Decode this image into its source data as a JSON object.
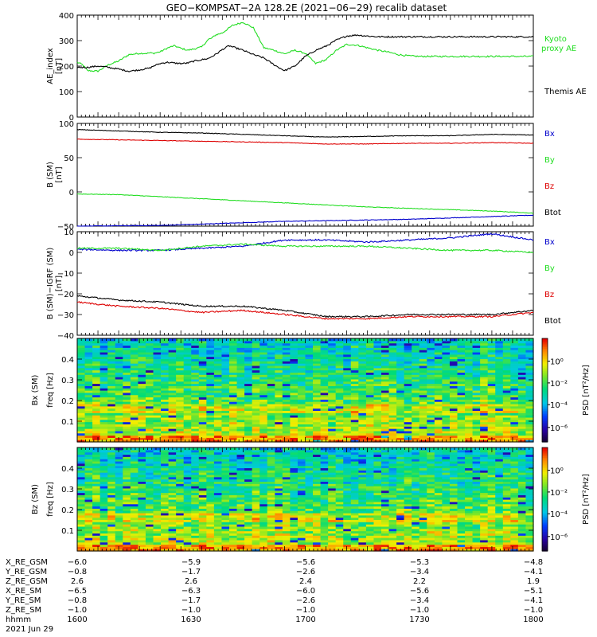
{
  "title": "GEO−KOMPSAT−2A 128.2E (2021−06−29) recalib dataset",
  "colors": {
    "black": "#000000",
    "green": "#22dd22",
    "red": "#dd0000",
    "blue": "#0000cc"
  },
  "chart_data": [
    {
      "type": "line",
      "panel": "ae",
      "ylabel": "AE_index",
      "yunit": "[nT]",
      "ylim": [
        0,
        400
      ],
      "yticks": [
        0,
        100,
        200,
        300,
        400
      ],
      "legend": [
        "Kyoto",
        "proxy AE",
        "Themis AE"
      ],
      "x": [
        0,
        8,
        15,
        30,
        45,
        60,
        75,
        90,
        100,
        105,
        110,
        120,
        130,
        140,
        150,
        160,
        170,
        180,
        190,
        195,
        200,
        210,
        220,
        225,
        240,
        255,
        270,
        285,
        300,
        315,
        330,
        345,
        360,
        375,
        390,
        405,
        420,
        435,
        450,
        465,
        480,
        495,
        510,
        525,
        540,
        555,
        570,
        585,
        600,
        615,
        630,
        645,
        660
      ],
      "series": [
        {
          "name": "Kyoto AE",
          "color": "#22dd22",
          "values": [
            215,
            205,
            182,
            180,
            205,
            220,
            245,
            250,
            250,
            252,
            250,
            256,
            270,
            280,
            270,
            262,
            268,
            275,
            305,
            310,
            322,
            330,
            350,
            360,
            372,
            350,
            272,
            262,
            248,
            262,
            250,
            210,
            225,
            262,
            285,
            282,
            272,
            262,
            255,
            245,
            240,
            238,
            238,
            238,
            238,
            238,
            238,
            238,
            238,
            238,
            238,
            238,
            238
          ]
        },
        {
          "name": "Themis AE",
          "color": "#000000",
          "values": [
            195,
            195,
            195,
            200,
            195,
            188,
            180,
            185,
            190,
            192,
            200,
            210,
            215,
            212,
            210,
            212,
            220,
            225,
            230,
            238,
            245,
            265,
            280,
            275,
            262,
            245,
            232,
            205,
            182,
            200,
            238,
            262,
            278,
            302,
            318,
            322,
            318,
            315,
            315,
            315,
            315,
            315,
            315,
            315,
            315,
            315,
            315,
            315,
            315,
            315,
            315,
            315,
            315
          ]
        }
      ]
    },
    {
      "type": "line",
      "panel": "bsm",
      "ylabel": "B (SM)",
      "yunit": "[nT]",
      "ylim": [
        -50,
        100
      ],
      "yticks": [
        -50,
        0,
        50,
        100
      ],
      "legend": [
        "Bx",
        "By",
        "Bz",
        "Btot"
      ],
      "x": [
        0,
        60,
        120,
        180,
        240,
        300,
        360,
        420,
        480,
        540,
        600,
        660
      ],
      "series": [
        {
          "name": "Bx",
          "color": "#0000cc",
          "values": [
            -50,
            -49.5,
            -49,
            -47,
            -45,
            -43,
            -42,
            -41,
            -40,
            -38,
            -36,
            -34
          ]
        },
        {
          "name": "By",
          "color": "#22dd22",
          "values": [
            -3,
            -4,
            -7,
            -10,
            -13,
            -16,
            -19,
            -22,
            -24,
            -26,
            -28,
            -31
          ]
        },
        {
          "name": "Bz",
          "color": "#dd0000",
          "values": [
            77,
            76,
            75,
            74,
            73,
            72,
            70,
            70,
            71,
            71,
            72,
            71
          ]
        },
        {
          "name": "Btot",
          "color": "#000000",
          "values": [
            91,
            89,
            87,
            86,
            84,
            82,
            80,
            81,
            82,
            82,
            84,
            83
          ]
        }
      ]
    },
    {
      "type": "line",
      "panel": "bdiff",
      "ylabel": "B (SM)−IGRF (SM)",
      "yunit": "[nT]",
      "ylim": [
        -40,
        10
      ],
      "yticks": [
        -40,
        -30,
        -20,
        -10,
        0,
        10
      ],
      "legend": [
        "Bx",
        "By",
        "Bz",
        "Btot"
      ],
      "x": [
        0,
        60,
        120,
        180,
        240,
        300,
        360,
        420,
        480,
        540,
        600,
        660
      ],
      "series": [
        {
          "name": "Bx",
          "color": "#0000cc",
          "values": [
            1.5,
            1,
            1,
            2,
            3,
            6,
            6,
            5,
            6,
            7,
            9,
            6
          ]
        },
        {
          "name": "By",
          "color": "#22dd22",
          "values": [
            2,
            2,
            1,
            3,
            4,
            3,
            3,
            3,
            2,
            1,
            1,
            0
          ]
        },
        {
          "name": "Bz",
          "color": "#dd0000",
          "values": [
            -24,
            -26,
            -27,
            -29,
            -28,
            -30,
            -32,
            -32,
            -31,
            -31,
            -31,
            -29
          ]
        },
        {
          "name": "Btot",
          "color": "#000000",
          "values": [
            -21,
            -23,
            -24,
            -26,
            -26,
            -28,
            -31,
            -31,
            -30,
            -30,
            -30,
            -28
          ]
        }
      ]
    },
    {
      "type": "heatmap",
      "panel": "spec_bx",
      "ylabel": "Bx (SM)",
      "ysub": "freq [Hz]",
      "ylim": [
        0,
        0.5
      ],
      "yticks": [
        0.1,
        0.2,
        0.3,
        0.4
      ],
      "colorbar_label": "PSD [nT²/Hz]",
      "colorbar_ticks": [
        "10⁰",
        "10⁻²",
        "10⁻⁴",
        "10⁻⁶"
      ]
    },
    {
      "type": "heatmap",
      "panel": "spec_bz",
      "ylabel": "Bz (SM)",
      "ysub": "freq [Hz]",
      "ylim": [
        0,
        0.5
      ],
      "yticks": [
        0.1,
        0.2,
        0.3,
        0.4
      ],
      "colorbar_label": "PSD [nT²/Hz]",
      "colorbar_ticks": [
        "10⁰",
        "10⁻²",
        "10⁻⁴",
        "10⁻⁶"
      ]
    }
  ],
  "footer": {
    "labels": [
      "X_RE_GSM",
      "Y_RE_GSM",
      "Z_RE_GSM",
      "X_RE_SM",
      "Y_RE_SM",
      "Z_RE_SM",
      "hhmm"
    ],
    "columns": [
      [
        "−6.0",
        "−0.8",
        "2.6",
        "−6.5",
        "−0.8",
        "−1.0",
        "1600"
      ],
      [
        "−5.9",
        "−1.7",
        "2.6",
        "−6.3",
        "−1.7",
        "−1.0",
        "1630"
      ],
      [
        "−5.6",
        "−2.6",
        "2.4",
        "−6.0",
        "−2.6",
        "−1.0",
        "1700"
      ],
      [
        "−5.3",
        "−3.4",
        "2.2",
        "−5.6",
        "−3.4",
        "−1.0",
        "1730"
      ],
      [
        "−4.8",
        "−4.1",
        "1.9",
        "−5.1",
        "−4.1",
        "−1.0",
        "1800"
      ]
    ],
    "date": "2021 Jun 29"
  }
}
